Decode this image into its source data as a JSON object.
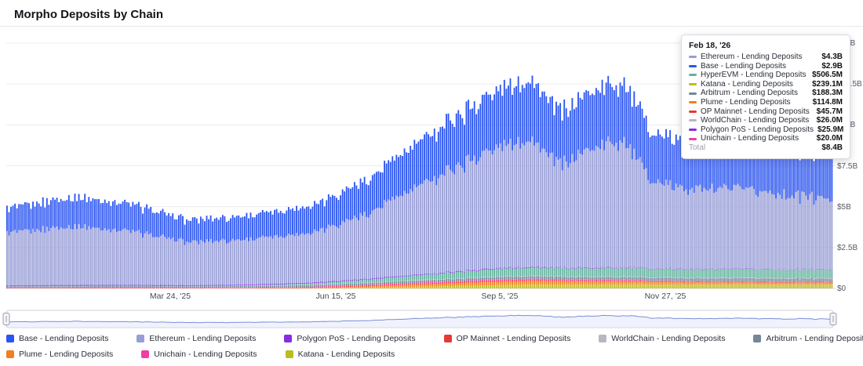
{
  "header": {
    "title": "Morpho Deposits by Chain"
  },
  "tooltip": {
    "date": "Feb 18, '26",
    "rows": [
      {
        "name": "Ethereum - Lending Deposits",
        "value": "$4.3B",
        "color": "#989ed6"
      },
      {
        "name": "Base - Lending Deposits",
        "value": "$2.9B",
        "color": "#2b55f0"
      },
      {
        "name": "HyperEVM - Lending Deposits",
        "value": "$506.5M",
        "color": "#62b39e"
      },
      {
        "name": "Katana - Lending Deposits",
        "value": "$239.1M",
        "color": "#b9bd21"
      },
      {
        "name": "Arbitrum - Lending Deposits",
        "value": "$188.3M",
        "color": "#74879a"
      },
      {
        "name": "Plume - Lending Deposits",
        "value": "$114.8M",
        "color": "#f47d20"
      },
      {
        "name": "OP Mainnet - Lending Deposits",
        "value": "$45.7M",
        "color": "#e53935"
      },
      {
        "name": "WorldChain - Lending Deposits",
        "value": "$26.0M",
        "color": "#b7b7c2"
      },
      {
        "name": "Polygon PoS - Lending Deposits",
        "value": "$25.9M",
        "color": "#8a2be2"
      },
      {
        "name": "Unichain - Lending Deposits",
        "value": "$20.0M",
        "color": "#ef3ea6"
      }
    ],
    "total_label": "Total",
    "total_value": "$8.4B"
  },
  "legend": {
    "rows": [
      [
        {
          "label": "Base - Lending Deposits",
          "color": "#2b55f0"
        },
        {
          "label": "Ethereum - Lending Deposits",
          "color": "#989ed6"
        },
        {
          "label": "Polygon PoS - Lending Deposits",
          "color": "#8a2be2"
        },
        {
          "label": "OP Mainnet - Lending Deposits",
          "color": "#e53935"
        },
        {
          "label": "WorldChain - Lending Deposits",
          "color": "#b7b7c2"
        },
        {
          "label": "Arbitrum - Lending Deposits",
          "color": "#74879a"
        },
        {
          "label": "HyperEVM - Lending Deposits",
          "color": "#62b39e"
        }
      ],
      [
        {
          "label": "Plume - Lending Deposits",
          "color": "#f47d20"
        },
        {
          "label": "Unichain - Lending Deposits",
          "color": "#ef3ea6"
        },
        {
          "label": "Katana - Lending Deposits",
          "color": "#b9bd21"
        }
      ]
    ]
  },
  "chart_data": {
    "type": "bar",
    "stacked": true,
    "title": "Morpho Deposits by Chain",
    "unit": "USD (billions)",
    "ylim": [
      0,
      15
    ],
    "y_ticks": [
      {
        "label": "$15B",
        "value": 15
      },
      {
        "label": "$12.5B",
        "value": 12.5
      },
      {
        "label": "$10B",
        "value": 10
      },
      {
        "label": "$7.5B",
        "value": 7.5
      },
      {
        "label": "$5B",
        "value": 5
      },
      {
        "label": "$2.5B",
        "value": 2.5
      },
      {
        "label": "$0",
        "value": 0
      }
    ],
    "x_ticks": [
      {
        "label": "Mar 24, '25",
        "date": "2025-03-24"
      },
      {
        "label": "Jun 15, '25",
        "date": "2025-06-15"
      },
      {
        "label": "Sep 5, '25",
        "date": "2025-09-05"
      },
      {
        "label": "Nov 27, '25",
        "date": "2025-11-27"
      }
    ],
    "x_range": [
      "2025-01-01",
      "2026-02-18"
    ],
    "sample_dates": [
      "2025-01-01",
      "2025-02-01",
      "2025-03-01",
      "2025-04-01",
      "2025-05-01",
      "2025-06-01",
      "2025-07-01",
      "2025-08-01",
      "2025-09-01",
      "2025-09-20",
      "2025-10-05",
      "2025-10-20",
      "2025-11-05",
      "2025-11-20",
      "2025-12-01",
      "2026-01-01",
      "2026-02-18"
    ],
    "stack_order": "bottom-to-top",
    "series": [
      {
        "name": "Katana - Lending Deposits",
        "color": "#b9bd21",
        "values": [
          0,
          0,
          0,
          0,
          0,
          0,
          0.05,
          0.12,
          0.2,
          0.24,
          0.23,
          0.24,
          0.25,
          0.24,
          0.24,
          0.24,
          0.2391
        ]
      },
      {
        "name": "Plume - Lending Deposits",
        "color": "#f47d20",
        "values": [
          0,
          0,
          0,
          0,
          0.01,
          0.03,
          0.08,
          0.15,
          0.2,
          0.22,
          0.2,
          0.18,
          0.17,
          0.15,
          0.14,
          0.12,
          0.1148
        ]
      },
      {
        "name": "OP Mainnet - Lending Deposits",
        "color": "#e53935",
        "values": [
          0.03,
          0.04,
          0.04,
          0.03,
          0.03,
          0.04,
          0.05,
          0.06,
          0.07,
          0.07,
          0.06,
          0.06,
          0.06,
          0.05,
          0.05,
          0.05,
          0.0457
        ]
      },
      {
        "name": "Unichain - Lending Deposits",
        "color": "#ef3ea6",
        "values": [
          0,
          0,
          0.01,
          0.01,
          0.02,
          0.03,
          0.05,
          0.06,
          0.07,
          0.07,
          0.06,
          0.05,
          0.05,
          0.04,
          0.03,
          0.02,
          0.02
        ]
      },
      {
        "name": "Arbitrum - Lending Deposits",
        "color": "#74879a",
        "values": [
          0.09,
          0.1,
          0.1,
          0.09,
          0.09,
          0.1,
          0.11,
          0.13,
          0.15,
          0.16,
          0.16,
          0.17,
          0.18,
          0.18,
          0.18,
          0.19,
          0.1883
        ]
      },
      {
        "name": "WorldChain - Lending Deposits",
        "color": "#b7b7c2",
        "values": [
          0.01,
          0.01,
          0.01,
          0.01,
          0.01,
          0.02,
          0.02,
          0.03,
          0.03,
          0.03,
          0.03,
          0.03,
          0.03,
          0.03,
          0.03,
          0.03,
          0.026
        ]
      },
      {
        "name": "HyperEVM - Lending Deposits",
        "color": "#62b39e",
        "values": [
          0,
          0,
          0,
          0,
          0.02,
          0.08,
          0.18,
          0.32,
          0.45,
          0.5,
          0.48,
          0.5,
          0.52,
          0.5,
          0.5,
          0.52,
          0.5065
        ]
      },
      {
        "name": "Polygon PoS - Lending Deposits",
        "color": "#8a2be2",
        "values": [
          0.06,
          0.07,
          0.07,
          0.06,
          0.06,
          0.06,
          0.06,
          0.05,
          0.05,
          0.05,
          0.04,
          0.04,
          0.04,
          0.03,
          0.03,
          0.03,
          0.0259
        ]
      },
      {
        "name": "Ethereum - Lending Deposits",
        "color": "#989ed6",
        "values": [
          3.2,
          3.6,
          3.35,
          2.65,
          2.75,
          3.05,
          4.0,
          5.8,
          7.3,
          7.9,
          6.3,
          7.3,
          7.9,
          5.4,
          5.0,
          4.9,
          4.3
        ]
      },
      {
        "name": "Base - Lending Deposits",
        "color": "#2b55f0",
        "values": [
          1.5,
          1.8,
          1.7,
          1.35,
          1.45,
          1.65,
          2.1,
          2.85,
          3.45,
          3.7,
          3.2,
          3.5,
          3.6,
          3.0,
          2.9,
          3.0,
          2.9
        ]
      }
    ]
  }
}
